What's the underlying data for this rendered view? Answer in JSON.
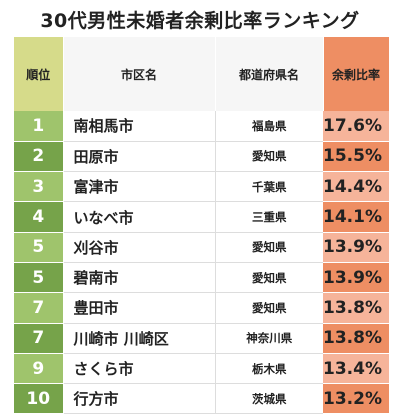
{
  "title": "30代男性未婚者余剰比率ランキング",
  "colors": {
    "header_rank_bg": "#d6db8a",
    "header_ratio_bg": "#ee8e63",
    "rank_cell_light": "#9fc46c",
    "rank_cell_dark": "#76a34a",
    "ratio_cell_light": "#f6b49a",
    "ratio_cell_dark": "#ee8e63"
  },
  "headers": {
    "rank": "順位",
    "city": "市区名",
    "prefecture": "都道府県名",
    "ratio": "余剰比率"
  },
  "chart_data": {
    "type": "table",
    "title": "30代男性未婚者余剰比率ランキング",
    "columns": [
      "順位",
      "市区名",
      "都道府県名",
      "余剰比率"
    ],
    "rows": [
      {
        "rank": "1",
        "city": "南相馬市",
        "prefecture": "福島県",
        "ratio": "17.6%"
      },
      {
        "rank": "2",
        "city": "田原市",
        "prefecture": "愛知県",
        "ratio": "15.5%"
      },
      {
        "rank": "3",
        "city": "富津市",
        "prefecture": "千葉県",
        "ratio": "14.4%"
      },
      {
        "rank": "4",
        "city": "いなべ市",
        "prefecture": "三重県",
        "ratio": "14.1%"
      },
      {
        "rank": "5",
        "city": "刈谷市",
        "prefecture": "愛知県",
        "ratio": "13.9%"
      },
      {
        "rank": "5",
        "city": "碧南市",
        "prefecture": "愛知県",
        "ratio": "13.9%"
      },
      {
        "rank": "7",
        "city": "豊田市",
        "prefecture": "愛知県",
        "ratio": "13.8%"
      },
      {
        "rank": "7",
        "city": "川崎市 川崎区",
        "prefecture": "神奈川県",
        "ratio": "13.8%"
      },
      {
        "rank": "9",
        "city": "さくら市",
        "prefecture": "栃木県",
        "ratio": "13.4%"
      },
      {
        "rank": "10",
        "city": "行方市",
        "prefecture": "茨城県",
        "ratio": "13.2%"
      }
    ]
  }
}
